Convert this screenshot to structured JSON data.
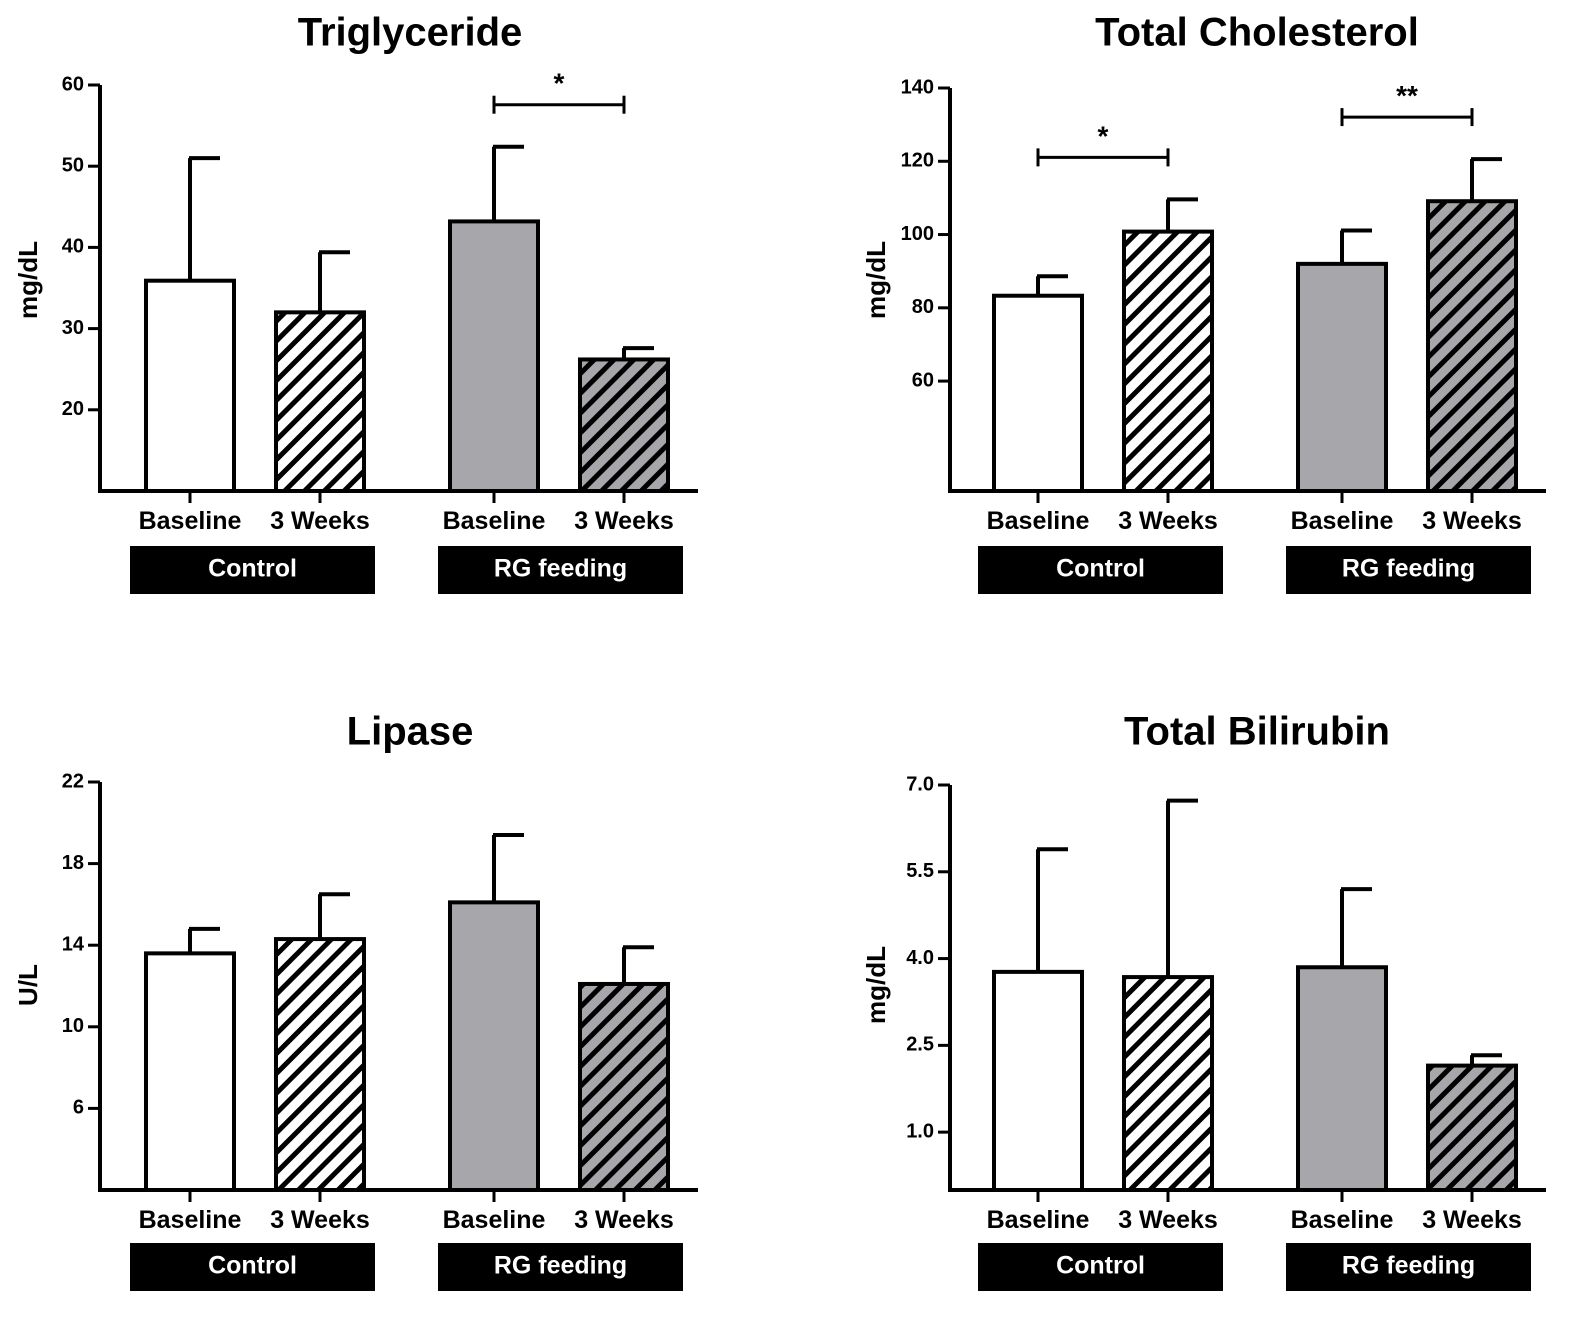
{
  "chart_data": [
    {
      "type": "bar",
      "title": "Triglyceride",
      "ylabel": "mg/dL",
      "ylim": [
        10,
        60
      ],
      "yticks": [
        "60",
        "50",
        "40",
        "30",
        "20"
      ],
      "ytick_values": [
        60,
        50,
        40,
        30,
        20
      ],
      "categories": [
        "Baseline",
        "3 Weeks",
        "Baseline",
        "3 Weeks"
      ],
      "groups": [
        "Control",
        "RG feeding"
      ],
      "values": [
        35.9,
        32.0,
        43.2,
        26.2
      ],
      "errors": [
        15.1,
        7.4,
        9.2,
        1.4
      ],
      "significance": [
        {
          "from": 2,
          "to": 3,
          "label": "*"
        }
      ]
    },
    {
      "type": "bar",
      "title": "Total Cholesterol",
      "ylabel": "mg/dL",
      "ylim": [
        30,
        140
      ],
      "yticks": [
        "140",
        "120",
        "100",
        "80",
        "60"
      ],
      "ytick_values": [
        140,
        120,
        100,
        80,
        60
      ],
      "categories": [
        "Baseline",
        "3 Weeks",
        "Baseline",
        "3 Weeks"
      ],
      "groups": [
        "Control",
        "RG feeding"
      ],
      "values": [
        83.3,
        100.8,
        92.0,
        109.1
      ],
      "errors": [
        5.3,
        8.8,
        9.1,
        11.5
      ],
      "significance": [
        {
          "from": 0,
          "to": 1,
          "label": "*"
        },
        {
          "from": 2,
          "to": 3,
          "label": "**"
        }
      ]
    },
    {
      "type": "bar",
      "title": "Lipase",
      "ylabel": "U/L",
      "ylim": [
        2,
        22
      ],
      "yticks": [
        "22",
        "18",
        "14",
        "10",
        "6"
      ],
      "ytick_values": [
        22,
        18,
        14,
        10,
        6
      ],
      "categories": [
        "Baseline",
        "3 Weeks",
        "Baseline",
        "3 Weeks"
      ],
      "groups": [
        "Control",
        "RG feeding"
      ],
      "values": [
        13.6,
        14.3,
        16.1,
        12.1
      ],
      "errors": [
        1.2,
        2.2,
        3.3,
        1.8
      ],
      "significance": []
    },
    {
      "type": "bar",
      "title": "Total Bilirubin",
      "ylabel": "mg/dL",
      "ylim": [
        0.0,
        7.0
      ],
      "yticks": [
        "7.0",
        "5.5",
        "4.0",
        "2.5",
        "1.0"
      ],
      "ytick_values": [
        7.0,
        5.5,
        4.0,
        2.5,
        1.0
      ],
      "categories": [
        "Baseline",
        "3 Weeks",
        "Baseline",
        "3 Weeks"
      ],
      "groups": [
        "Control",
        "RG feeding"
      ],
      "values": [
        3.77,
        3.68,
        3.85,
        2.15
      ],
      "errors": [
        2.12,
        3.05,
        1.35,
        0.18
      ],
      "significance": []
    }
  ],
  "style": {
    "control_fill": "#ffffff",
    "rg_fill": "#a7a7ab",
    "hatch_color": "#000000",
    "axis_color": "#000000",
    "group_box_color": "#000000",
    "group_text_color": "#ffffff"
  }
}
